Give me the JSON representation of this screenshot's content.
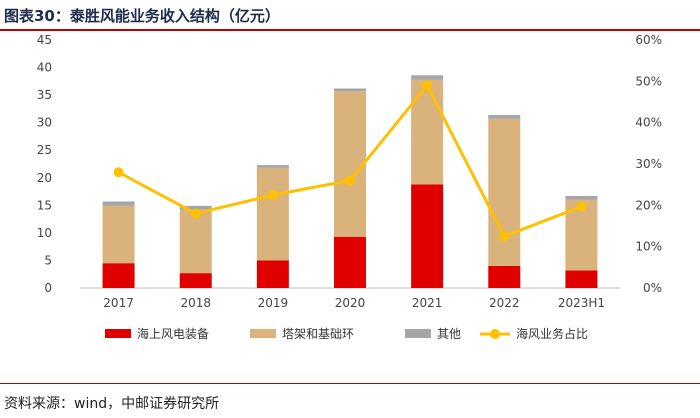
{
  "title": "图表30：泰胜风能业务收入结构（亿元）",
  "source": "资料来源：wind，中邮证券研究所",
  "chart_data": {
    "type": "bar",
    "stacked": true,
    "categories": [
      "2017",
      "2018",
      "2019",
      "2020",
      "2021",
      "2022",
      "2023H1"
    ],
    "series": [
      {
        "name": "海上风电装备",
        "type": "bar",
        "axis": "left",
        "color": "#e00000",
        "values": [
          4.5,
          2.7,
          5.0,
          9.3,
          18.8,
          4.0,
          3.2
        ]
      },
      {
        "name": "塔架和基础环",
        "type": "bar",
        "axis": "left",
        "color": "#d9b27c",
        "values": [
          10.4,
          11.5,
          16.8,
          26.4,
          19.0,
          26.7,
          12.8
        ]
      },
      {
        "name": "其他",
        "type": "bar",
        "axis": "left",
        "color": "#a6a6a6",
        "values": [
          0.8,
          0.7,
          0.5,
          0.5,
          0.8,
          0.7,
          0.7
        ]
      },
      {
        "name": "海风业务占比",
        "type": "line",
        "axis": "right",
        "color": "#ffc000",
        "values": [
          28.0,
          18.0,
          22.5,
          26.0,
          49.0,
          12.5,
          19.7
        ]
      }
    ],
    "y_left": {
      "min": 0,
      "max": 45,
      "ticks": [
        0,
        5,
        10,
        15,
        20,
        25,
        30,
        35,
        40,
        45
      ]
    },
    "y_right": {
      "min": 0,
      "max": 60,
      "ticks": [
        "0%",
        "10%",
        "20%",
        "30%",
        "40%",
        "50%",
        "60%"
      ]
    },
    "grid": false,
    "legend_position": "bottom"
  }
}
